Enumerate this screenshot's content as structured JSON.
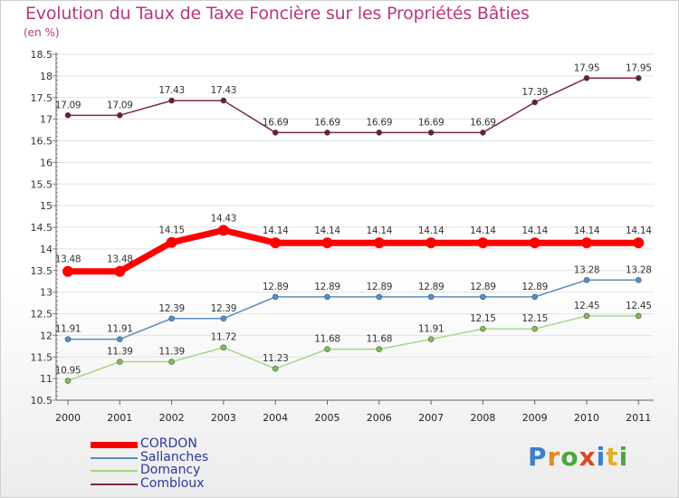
{
  "title": "Evolution du Taux de Taxe Foncière sur les Propriétés Bâties",
  "subtitle": "(en %)",
  "logo": [
    "P",
    "r",
    "o",
    "x",
    "i",
    "t",
    "i"
  ],
  "chart_data": {
    "type": "line",
    "title": "Evolution du Taux de Taxe Foncière sur les Propriétés Bâties",
    "ylabel": "(en %)",
    "xlabel": "",
    "ylim": [
      10.5,
      18.5
    ],
    "yticks": [
      "10.5",
      "11",
      "11.5",
      "12",
      "12.5",
      "13",
      "13.5",
      "14",
      "14.5",
      "15",
      "15.5",
      "16",
      "16.5",
      "17",
      "17.5",
      "18",
      "18.5"
    ],
    "x": [
      "2000",
      "2001",
      "2002",
      "2003",
      "2004",
      "2005",
      "2006",
      "2007",
      "2008",
      "2009",
      "2010",
      "2011"
    ],
    "series": [
      {
        "name": "CORDON",
        "color": "#ff0000",
        "width": 7,
        "marker": 6,
        "values": [
          13.48,
          13.48,
          14.15,
          14.43,
          14.14,
          14.14,
          14.14,
          14.14,
          14.14,
          14.14,
          14.14,
          14.14
        ],
        "labels": [
          "13.48",
          "13.48",
          "14.15",
          "14.43",
          "14.14",
          "14.14",
          "14.14",
          "14.14",
          "14.14",
          "14.14",
          "14.14",
          "14.14"
        ]
      },
      {
        "name": "Sallanches",
        "color": "#5a8ec4",
        "marker_fill": "#4a90d9",
        "width": 1.5,
        "marker": 3,
        "values": [
          11.91,
          11.91,
          12.39,
          12.39,
          12.89,
          12.89,
          12.89,
          12.89,
          12.89,
          12.89,
          13.28,
          13.28
        ],
        "labels": [
          "11.91",
          "11.91",
          "12.39",
          "12.39",
          "12.89",
          "12.89",
          "12.89",
          "12.89",
          "12.89",
          "12.89",
          "13.28",
          "13.28"
        ]
      },
      {
        "name": "Domancy",
        "color": "#a6d785",
        "marker_fill": "#7cc24a",
        "width": 1.5,
        "marker": 3,
        "values": [
          10.95,
          11.39,
          11.39,
          11.72,
          11.23,
          11.68,
          11.68,
          11.91,
          12.15,
          12.15,
          12.45,
          12.45
        ],
        "labels": [
          "10.95",
          "11.39",
          "11.39",
          "11.72",
          "11.23",
          "11.68",
          "11.68",
          "11.91",
          "12.15",
          "12.15",
          "12.45",
          "12.45"
        ]
      },
      {
        "name": "Combloux",
        "color": "#7b2e3a",
        "marker_fill": "#6b1e2a",
        "width": 1.5,
        "marker": 3,
        "values": [
          17.09,
          17.09,
          17.43,
          17.43,
          16.69,
          16.69,
          16.69,
          16.69,
          16.69,
          17.39,
          17.95,
          17.95
        ],
        "labels": [
          "17.09",
          "17.09",
          "17.43",
          "17.43",
          "16.69",
          "16.69",
          "16.69",
          "16.69",
          "16.69",
          "17.39",
          "17.95",
          "17.95"
        ]
      }
    ],
    "legend": [
      "CORDON",
      "Sallanches",
      "Domancy",
      "Combloux"
    ]
  }
}
